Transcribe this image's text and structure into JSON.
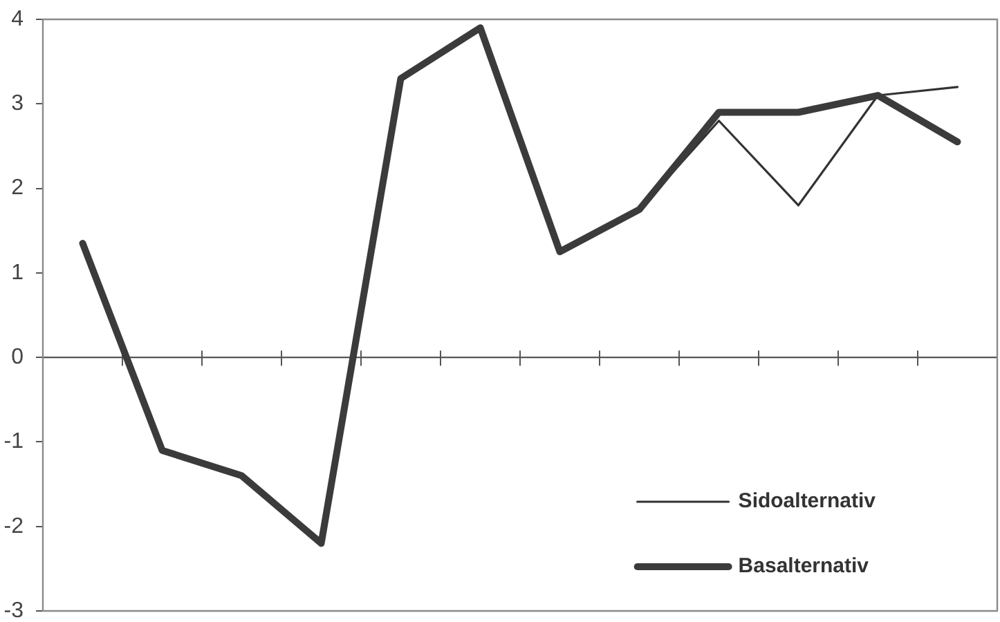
{
  "chart_data": {
    "type": "line",
    "categories": [
      null,
      null,
      null,
      null,
      null,
      null,
      null,
      null,
      null,
      null,
      null,
      null
    ],
    "series": [
      {
        "name": "Sidoalternativ",
        "color": "#333333",
        "values": [
          null,
          null,
          null,
          null,
          null,
          null,
          null,
          1.75,
          2.8,
          1.8,
          3.1,
          3.2
        ]
      },
      {
        "name": "Basalternativ",
        "color": "#3b3b3b",
        "values": [
          1.35,
          -1.1,
          -1.4,
          -2.2,
          3.3,
          3.9,
          1.25,
          1.75,
          2.9,
          2.9,
          3.1,
          2.55
        ]
      }
    ],
    "ylim": [
      -3,
      4
    ],
    "yticks": [
      -3,
      -2,
      -1,
      0,
      1,
      2,
      3,
      4
    ],
    "ref_lines": [
      {
        "axis": "y",
        "value": 0,
        "color": "#555555"
      }
    ],
    "grid": false,
    "legend": "bottom right",
    "marker": "none",
    "line_style": "solid",
    "tick_labels": "y"
  }
}
